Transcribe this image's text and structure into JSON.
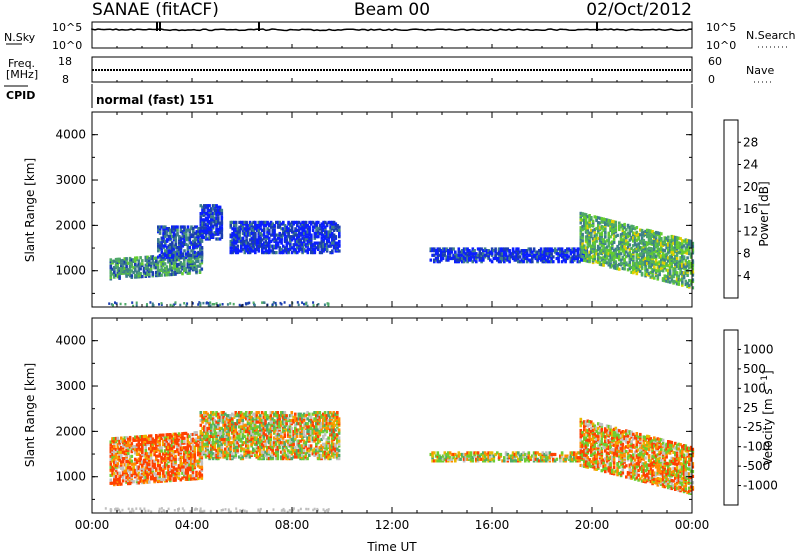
{
  "header": {
    "title_left": "SANAE (fitACF)",
    "title_center": "Beam 00",
    "title_right": "02/Oct/2012"
  },
  "strips": {
    "nsky": {
      "label": "N.Sky",
      "ticks_left": [
        "10^5",
        "10^0"
      ],
      "ticks_right": [
        "10^5",
        "10^0"
      ],
      "right_label": "N.Search"
    },
    "freq": {
      "label_top": "Freq.",
      "label_bottom": "[MHz]",
      "ticks_left": [
        "18",
        "8"
      ],
      "ticks_right": [
        "60",
        "0"
      ],
      "right_label": "Nave"
    },
    "cpid": {
      "label": "CPID",
      "text": "normal (fast) 151"
    }
  },
  "colors": {
    "nsky_line": "#000000",
    "power_scale": [
      "#0a1eff",
      "#1a3eb0",
      "#3e7e8a",
      "#4ea868",
      "#63cc30",
      "#e0d000",
      "#ff9000",
      "#ff5000",
      "#e81a10",
      "#cc0000"
    ],
    "velocity_scale": [
      "#e01010",
      "#ff4000",
      "#ff8c00",
      "#e8b800",
      "#c0c0c0",
      "#c0c0c0",
      "#6ecc30",
      "#4ea868",
      "#3e7e8a",
      "#1a3eb0",
      "#0a1eff"
    ]
  },
  "chart_data": [
    {
      "type": "heatmap",
      "name": "Power",
      "ylabel": "Slant Range [km]",
      "y_ticks": [
        "1000",
        "2000",
        "3000",
        "4000"
      ],
      "ylim": [
        200,
        4500
      ],
      "x_ticks": [
        "00:00",
        "04:00",
        "08:00",
        "12:00",
        "16:00",
        "20:00",
        "00:00"
      ],
      "xlim_hours": [
        0,
        24
      ],
      "colorbar": {
        "label": "Power [dB]",
        "ticks": [
          "4",
          "8",
          "12",
          "16",
          "20",
          "24",
          "28"
        ],
        "range": [
          0,
          32
        ]
      },
      "regions": [
        {
          "t0": 0.7,
          "t1": 4.4,
          "r0": 820,
          "r1": 1250,
          "power": 9
        },
        {
          "t0": 2.6,
          "t1": 4.4,
          "r0": 1300,
          "r1": 2000,
          "power": 5
        },
        {
          "t0": 4.3,
          "t1": 5.2,
          "r0": 1700,
          "r1": 2450,
          "power": 3
        },
        {
          "t0": 5.5,
          "t1": 9.9,
          "r0": 1400,
          "r1": 2100,
          "power": 3
        },
        {
          "t0": 13.5,
          "t1": 19.8,
          "r0": 1200,
          "r1": 1500,
          "power": 3
        },
        {
          "t0": 19.5,
          "t1": 24.0,
          "r0": 1250,
          "r1": 2300,
          "power": 12
        }
      ]
    },
    {
      "type": "heatmap",
      "name": "Velocity",
      "ylabel": "Slant Range [km]",
      "y_ticks": [
        "1000",
        "2000",
        "3000",
        "4000"
      ],
      "ylim": [
        200,
        4500
      ],
      "x_ticks": [
        "00:00",
        "04:00",
        "08:00",
        "12:00",
        "16:00",
        "20:00",
        "00:00"
      ],
      "xlabel": "Time UT",
      "xlim_hours": [
        0,
        24
      ],
      "colorbar": {
        "label": "Velocity [m s^-1]",
        "ticks": [
          "1000",
          "500",
          "100",
          "25",
          "-25",
          "-100",
          "-500",
          "-1000"
        ],
        "range": [
          -1000,
          1000
        ]
      },
      "regions": [
        {
          "t0": 0.7,
          "t1": 4.4,
          "r0": 820,
          "r1": 1850,
          "velocity": -100
        },
        {
          "t0": 4.3,
          "t1": 9.9,
          "r0": 1400,
          "r1": 2450,
          "velocity": 0
        },
        {
          "t0": 13.5,
          "t1": 19.8,
          "r0": 1350,
          "r1": 1550,
          "velocity": 0
        },
        {
          "t0": 19.5,
          "t1": 24.0,
          "r0": 1250,
          "r1": 2300,
          "velocity": -50
        }
      ]
    }
  ]
}
